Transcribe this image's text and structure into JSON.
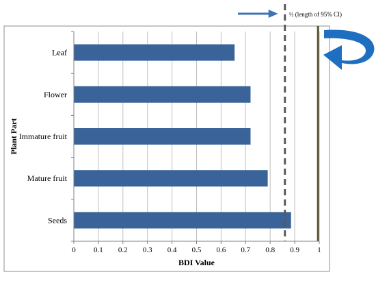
{
  "chart_data": {
    "type": "bar",
    "orientation": "horizontal",
    "categories": [
      "Leaf",
      "Flower",
      "Immature fruit",
      "Mature fruit",
      "Seeds"
    ],
    "values": [
      0.655,
      0.72,
      0.72,
      0.79,
      0.885
    ],
    "xlabel": "BDI Value",
    "ylabel": "Plant Part",
    "xlim": [
      0,
      1
    ],
    "xticks": [
      "0",
      "0.1",
      "0.2",
      "0.3",
      "0.4",
      "0.5",
      "0.6",
      "0.7",
      "0.8",
      "0.9",
      "1"
    ],
    "grid": "vertical",
    "bar_color": "#3a6499",
    "reference_lines": [
      {
        "value": 0.86,
        "style": "dashed",
        "color": "#595959",
        "label": "½ (length of 95% CI)"
      },
      {
        "value": 0.995,
        "style": "solid",
        "color": "#5a5331"
      }
    ],
    "annotation_arrow_color": "#3f72b5",
    "curved_arrow_color": "#1f6fc1"
  }
}
